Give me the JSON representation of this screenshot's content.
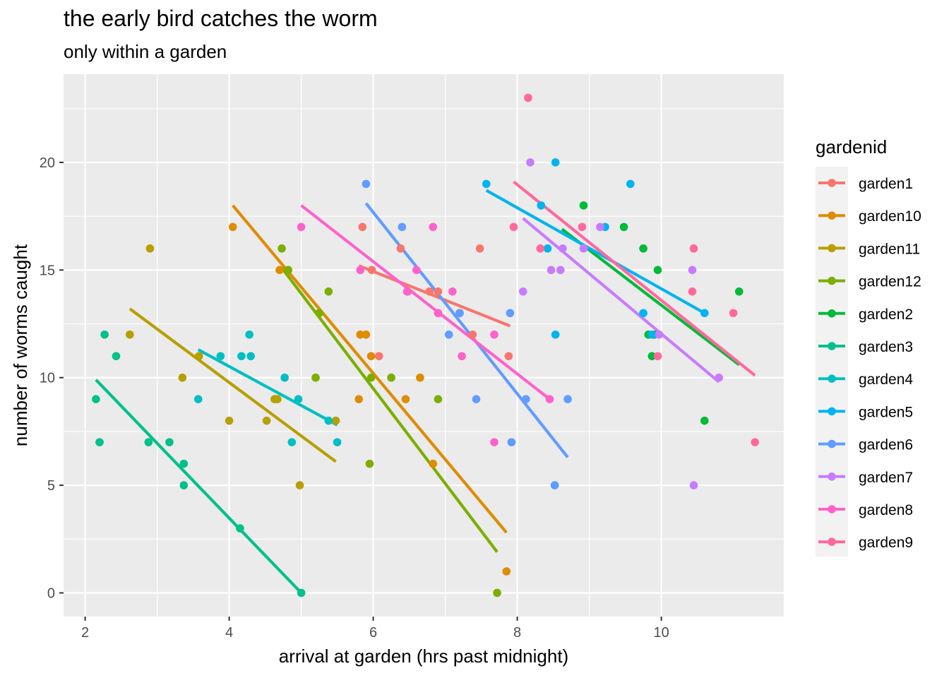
{
  "chart_data": {
    "type": "scatter",
    "title": "the early bird catches the worm",
    "subtitle": "only within a garden",
    "xlabel": "arrival at garden (hrs past midnight)",
    "ylabel": "number of worms caught",
    "xlim": [
      1.7,
      11.7
    ],
    "ylim": [
      -1.1,
      24.1
    ],
    "xticks": [
      2,
      4,
      6,
      8,
      10
    ],
    "yticks": [
      0,
      5,
      10,
      15,
      20
    ],
    "grid": true,
    "legend_title": "gardenid",
    "legend_position": "right",
    "series": [
      {
        "name": "garden1",
        "color": "#F8766D",
        "points": [
          [
            5.85,
            17
          ],
          [
            5.82,
            15
          ],
          [
            5.98,
            15
          ],
          [
            6.38,
            16
          ],
          [
            6.48,
            14
          ],
          [
            6.78,
            14
          ],
          [
            6.9,
            14
          ],
          [
            6.9,
            13
          ],
          [
            7.48,
            16
          ],
          [
            7.38,
            12
          ],
          [
            7.88,
            11
          ],
          [
            6.08,
            11
          ],
          [
            7.2,
            13
          ]
        ],
        "fit": [
          [
            5.8,
            15.2
          ],
          [
            7.9,
            12.4
          ]
        ]
      },
      {
        "name": "garden10",
        "color": "#DE8C00",
        "points": [
          [
            4.05,
            17
          ],
          [
            5.82,
            12
          ],
          [
            5.9,
            12
          ],
          [
            5.97,
            11
          ],
          [
            6.45,
            9
          ],
          [
            6.65,
            10
          ],
          [
            6.83,
            6
          ],
          [
            7.85,
            1
          ],
          [
            5.8,
            9
          ],
          [
            4.7,
            15
          ]
        ],
        "fit": [
          [
            4.05,
            18.0
          ],
          [
            7.85,
            2.8
          ]
        ]
      },
      {
        "name": "garden11",
        "color": "#B79F00",
        "points": [
          [
            2.9,
            16
          ],
          [
            2.62,
            12
          ],
          [
            3.35,
            10
          ],
          [
            3.58,
            11
          ],
          [
            4.0,
            8
          ],
          [
            4.52,
            8
          ],
          [
            4.63,
            9
          ],
          [
            4.67,
            9
          ],
          [
            4.98,
            5
          ],
          [
            5.48,
            8
          ]
        ],
        "fit": [
          [
            2.62,
            13.2
          ],
          [
            5.48,
            6.1
          ]
        ]
      },
      {
        "name": "garden12",
        "color": "#7CAE00",
        "points": [
          [
            4.73,
            16
          ],
          [
            4.82,
            15
          ],
          [
            5.2,
            10
          ],
          [
            5.38,
            14
          ],
          [
            5.95,
            6
          ],
          [
            5.97,
            10
          ],
          [
            6.25,
            10
          ],
          [
            6.9,
            9
          ],
          [
            7.72,
            0
          ],
          [
            5.25,
            13
          ]
        ],
        "fit": [
          [
            4.73,
            15.1
          ],
          [
            7.72,
            1.9
          ]
        ]
      },
      {
        "name": "garden2",
        "color": "#00BA38",
        "points": [
          [
            8.92,
            18
          ],
          [
            9.48,
            17
          ],
          [
            9.75,
            16
          ],
          [
            9.95,
            15
          ],
          [
            9.82,
            12
          ],
          [
            9.9,
            12
          ],
          [
            9.87,
            11
          ],
          [
            10.6,
            8
          ],
          [
            11.08,
            14
          ]
        ],
        "fit": [
          [
            8.62,
            16.9
          ],
          [
            11.08,
            10.6
          ]
        ]
      },
      {
        "name": "garden3",
        "color": "#00C08B",
        "points": [
          [
            2.15,
            9
          ],
          [
            2.2,
            7
          ],
          [
            2.27,
            12
          ],
          [
            2.43,
            11
          ],
          [
            2.88,
            7
          ],
          [
            3.17,
            7
          ],
          [
            3.37,
            6
          ],
          [
            3.37,
            5
          ],
          [
            4.15,
            3
          ],
          [
            5.0,
            0
          ]
        ],
        "fit": [
          [
            2.15,
            9.9
          ],
          [
            5.0,
            0
          ]
        ]
      },
      {
        "name": "garden4",
        "color": "#00BFC4",
        "points": [
          [
            3.88,
            11
          ],
          [
            4.17,
            11
          ],
          [
            4.28,
            12
          ],
          [
            4.3,
            11
          ],
          [
            3.57,
            9
          ],
          [
            4.77,
            10
          ],
          [
            4.87,
            7
          ],
          [
            4.96,
            9
          ],
          [
            5.38,
            8
          ],
          [
            5.5,
            7
          ]
        ],
        "fit": [
          [
            3.57,
            11.3
          ],
          [
            5.5,
            7.8
          ]
        ]
      },
      {
        "name": "garden5",
        "color": "#00B4F0",
        "points": [
          [
            7.57,
            19
          ],
          [
            8.33,
            18
          ],
          [
            8.53,
            20
          ],
          [
            9.57,
            19
          ],
          [
            9.22,
            17
          ],
          [
            9.75,
            13
          ],
          [
            10.6,
            13
          ],
          [
            8.42,
            16
          ],
          [
            8.53,
            12
          ],
          [
            9.87,
            12
          ]
        ],
        "fit": [
          [
            7.57,
            18.7
          ],
          [
            10.6,
            13.0
          ]
        ]
      },
      {
        "name": "garden6",
        "color": "#619CFF",
        "points": [
          [
            5.9,
            19
          ],
          [
            6.4,
            17
          ],
          [
            7.2,
            13
          ],
          [
            7.05,
            12
          ],
          [
            7.43,
            9
          ],
          [
            7.9,
            13
          ],
          [
            7.92,
            7
          ],
          [
            8.12,
            9
          ],
          [
            8.52,
            5
          ],
          [
            8.7,
            9
          ]
        ],
        "fit": [
          [
            5.9,
            18.1
          ],
          [
            8.7,
            6.3
          ]
        ]
      },
      {
        "name": "garden7",
        "color": "#C77CFF",
        "points": [
          [
            8.18,
            20
          ],
          [
            8.08,
            14
          ],
          [
            8.47,
            15
          ],
          [
            8.6,
            15
          ],
          [
            8.63,
            16
          ],
          [
            8.92,
            16
          ],
          [
            9.15,
            17
          ],
          [
            9.97,
            12
          ],
          [
            10.43,
            15
          ],
          [
            10.45,
            5
          ],
          [
            10.8,
            10
          ]
        ],
        "fit": [
          [
            8.08,
            17.4
          ],
          [
            10.8,
            9.8
          ]
        ]
      },
      {
        "name": "garden8",
        "color": "#FF61CC",
        "points": [
          [
            5.0,
            17
          ],
          [
            5.82,
            15
          ],
          [
            6.47,
            14
          ],
          [
            6.6,
            15
          ],
          [
            6.83,
            17
          ],
          [
            7.1,
            14
          ],
          [
            7.23,
            11
          ],
          [
            7.68,
            12
          ],
          [
            7.68,
            7
          ],
          [
            8.45,
            9
          ],
          [
            6.9,
            13
          ]
        ],
        "fit": [
          [
            5.0,
            18.0
          ],
          [
            8.45,
            9.0
          ]
        ]
      },
      {
        "name": "garden9",
        "color": "#FF689F",
        "points": [
          [
            8.15,
            23
          ],
          [
            7.95,
            17
          ],
          [
            8.32,
            16
          ],
          [
            8.9,
            17
          ],
          [
            9.95,
            11
          ],
          [
            10.45,
            16
          ],
          [
            10.43,
            14
          ],
          [
            11.0,
            13
          ],
          [
            11.3,
            7
          ]
        ],
        "fit": [
          [
            7.95,
            19.1
          ],
          [
            11.3,
            10.1
          ]
        ]
      }
    ]
  }
}
